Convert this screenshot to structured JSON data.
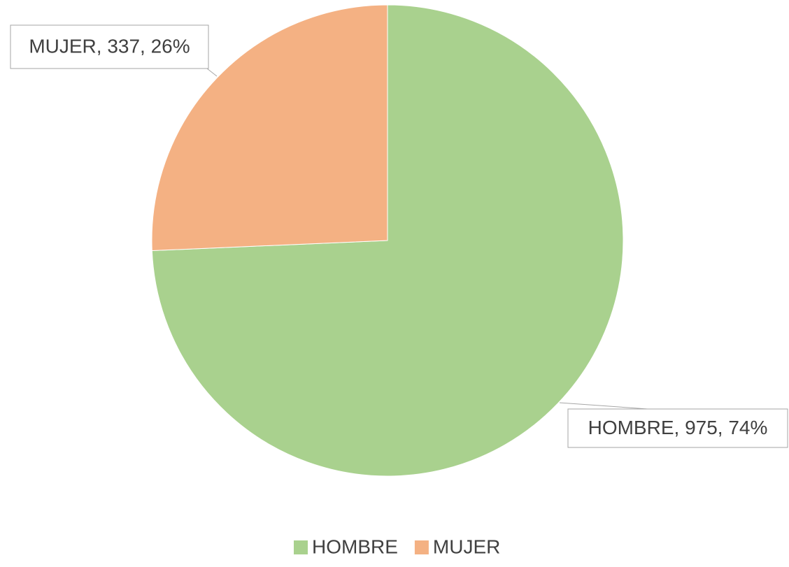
{
  "chart_data": {
    "type": "pie",
    "categories": [
      "HOMBRE",
      "MUJER"
    ],
    "values": [
      975,
      337
    ],
    "value_labels": [
      "HOMBRE, 975, 74%",
      "MUJER, 337, 26%"
    ],
    "colors": [
      "#a9d18e",
      "#f4b183"
    ],
    "legend": "bottom"
  }
}
